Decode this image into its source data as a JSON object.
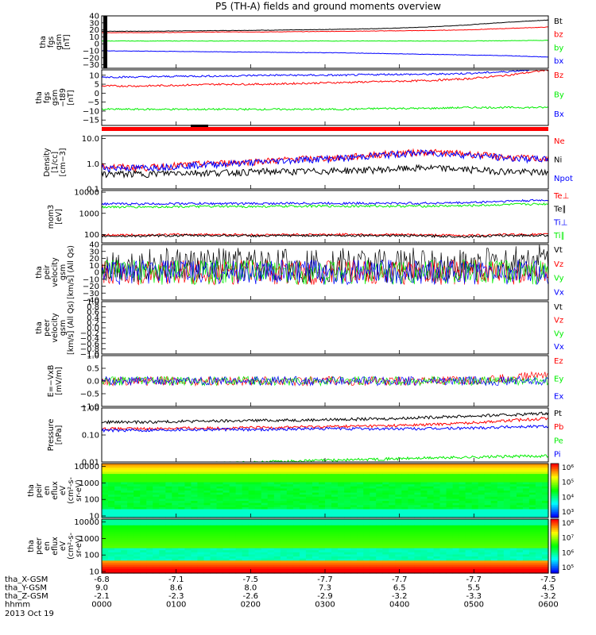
{
  "title": "P5 (TH-A) fields and ground moments overview",
  "footer": {
    "rows": [
      {
        "label": "tha_X-GSM",
        "values": [
          "-6.8",
          "-7.1",
          "-7.5",
          "-7.7",
          "-7.7",
          "-7.7",
          "-7.5"
        ]
      },
      {
        "label": "tha_Y-GSM",
        "values": [
          "9.0",
          "8.6",
          "8.0",
          "7.3",
          "6.5",
          "5.5",
          "4.5"
        ]
      },
      {
        "label": "tha_Z-GSM",
        "values": [
          "-2.1",
          "-2.3",
          "-2.6",
          "-2.9",
          "-3.2",
          "-3.3",
          "-3.2"
        ]
      },
      {
        "label": "hhmm",
        "values": [
          "0000",
          "0100",
          "0200",
          "0300",
          "0400",
          "0500",
          "0600"
        ]
      }
    ],
    "date": "2013 Oct 19"
  },
  "colors": {
    "black": "#000000",
    "red": "#ff0000",
    "green": "#00ee00",
    "blue": "#0000ff"
  },
  "chart_data": [
    {
      "type": "line",
      "ylabel": [
        "tha",
        "fgs",
        "gsm",
        "[nT]"
      ],
      "yticks": [
        "40",
        "30",
        "20",
        "10",
        "0",
        "−10",
        "−20",
        "−30"
      ],
      "series": [
        {
          "name": "Bt",
          "color": "black",
          "values": [
            18,
            18,
            18.5,
            19,
            19.5,
            20,
            21,
            22,
            24,
            27,
            31,
            34
          ]
        },
        {
          "name": "bz",
          "color": "red",
          "values": [
            16,
            16,
            16.5,
            17,
            17,
            17.5,
            18,
            18.5,
            19,
            20,
            22,
            24
          ]
        },
        {
          "name": "by",
          "color": "green",
          "values": [
            4,
            4,
            4,
            4,
            4,
            4,
            4,
            4,
            4,
            4,
            4.5,
            5
          ]
        },
        {
          "name": "bx",
          "color": "blue",
          "values": [
            -10,
            -10.5,
            -11,
            -11.5,
            -12,
            -12.5,
            -13,
            -14,
            -15,
            -16,
            -17,
            -19
          ]
        }
      ]
    },
    {
      "type": "line",
      "ylabel": [
        "tha",
        "fgs",
        "gsm",
        "−t89",
        "[nT]"
      ],
      "yticks": [
        "10",
        "5",
        "0",
        "−5",
        "−10",
        "−15"
      ],
      "series": [
        {
          "name": "Bz",
          "color": "red",
          "values": [
            4,
            4,
            4.5,
            5,
            5,
            5.5,
            6,
            6.5,
            7,
            8,
            10,
            13
          ]
        },
        {
          "name": "By",
          "color": "green",
          "values": [
            -9,
            -9,
            -9,
            -9,
            -9,
            -9,
            -9,
            -8.5,
            -8.5,
            -8,
            -8,
            -8
          ]
        },
        {
          "name": "Bx",
          "color": "blue",
          "values": [
            9,
            9,
            9.5,
            9.5,
            10,
            10,
            10,
            10.5,
            10.5,
            11,
            12,
            14
          ]
        }
      ]
    },
    {
      "type": "line",
      "ylabel": [
        "Density",
        "[1/cc]",
        "[cm−3]"
      ],
      "yticks": [
        "10.0",
        "1.0",
        "0.1"
      ],
      "series": [
        {
          "name": "Ne",
          "color": "red",
          "values": [
            0.8,
            0.7,
            0.9,
            1.1,
            1.3,
            1.6,
            1.8,
            2.5,
            3.0,
            2.5,
            1.8,
            1.6
          ]
        },
        {
          "name": "Ni",
          "color": "black",
          "values": [
            0.4,
            0.4,
            0.45,
            0.45,
            0.5,
            0.5,
            0.55,
            0.6,
            0.7,
            0.6,
            0.5,
            0.45
          ]
        },
        {
          "name": "Npot",
          "color": "blue",
          "values": [
            0.7,
            0.7,
            0.85,
            1.0,
            1.2,
            1.5,
            1.7,
            2.3,
            2.8,
            2.3,
            1.7,
            1.5
          ]
        }
      ]
    },
    {
      "type": "line",
      "ylabel": [
        "mom3",
        "[eV]"
      ],
      "yticks": [
        "10000",
        "1000",
        "100"
      ],
      "series": [
        {
          "name": "Te⊥",
          "color": "red",
          "values": [
            95,
            95,
            100,
            100,
            95,
            100,
            100,
            100,
            95,
            90,
            100,
            100
          ]
        },
        {
          "name": "Te∥",
          "color": "black",
          "values": [
            85,
            85,
            90,
            90,
            85,
            90,
            90,
            90,
            85,
            80,
            90,
            90
          ]
        },
        {
          "name": "Ti⊥",
          "color": "blue",
          "values": [
            2800,
            2800,
            2900,
            2900,
            2900,
            3000,
            3000,
            3000,
            3000,
            3200,
            3800,
            4200
          ]
        },
        {
          "name": "Ti∥",
          "color": "green",
          "values": [
            2000,
            2000,
            2100,
            2100,
            2100,
            2200,
            2200,
            2200,
            2200,
            2300,
            2600,
            2800
          ]
        }
      ]
    },
    {
      "type": "line",
      "ylabel": [
        "tha",
        "peir",
        "velocity",
        "gsm",
        "[km/s] (All Qs)"
      ],
      "yticks": [
        "40",
        "30",
        "20",
        "10",
        "0",
        "−10",
        "−20",
        "−30",
        "−40"
      ],
      "series": [
        {
          "name": "Vt",
          "color": "black",
          "values": [
            10,
            10,
            10,
            10,
            10,
            10,
            10,
            10,
            10,
            10,
            12,
            18
          ]
        },
        {
          "name": "Vz",
          "color": "red",
          "values": [
            0,
            0,
            0,
            0,
            0,
            0,
            0,
            0,
            0,
            0,
            0,
            0
          ]
        },
        {
          "name": "Vy",
          "color": "green",
          "values": [
            0,
            0,
            0,
            0,
            0,
            0,
            0,
            0,
            0,
            0,
            0,
            0
          ]
        },
        {
          "name": "Vx",
          "color": "blue",
          "values": [
            0,
            0,
            0,
            0,
            0,
            0,
            0,
            0,
            0,
            0,
            0,
            0
          ]
        }
      ]
    },
    {
      "type": "line",
      "ylabel": [
        "tha",
        "peer",
        "velocity",
        "gsm",
        "[km/s] (All Qs)"
      ],
      "yticks": [
        "1.0",
        "0.8",
        "0.6",
        "0.4",
        "0.2",
        "0.0",
        "−0.2",
        "−0.4",
        "−0.6",
        "−0.8",
        "−1.0"
      ],
      "series": [
        {
          "name": "Vt",
          "color": "black",
          "values": []
        },
        {
          "name": "Vz",
          "color": "red",
          "values": []
        },
        {
          "name": "Vy",
          "color": "green",
          "values": []
        },
        {
          "name": "Vx",
          "color": "blue",
          "values": []
        }
      ]
    },
    {
      "type": "line",
      "ylabel": [
        "E=−VxB",
        "[mV/m]"
      ],
      "yticks": [
        "1.0",
        "0.5",
        "0.0",
        "−0.5",
        "−1.0"
      ],
      "series": [
        {
          "name": "Ez",
          "color": "red",
          "values": [
            0,
            0,
            0,
            0,
            0,
            0,
            0,
            0,
            0,
            0,
            0.1,
            0.3
          ]
        },
        {
          "name": "Ey",
          "color": "green",
          "values": [
            0,
            0,
            0,
            0,
            0,
            0,
            0,
            0,
            0,
            0,
            0,
            0
          ]
        },
        {
          "name": "Ex",
          "color": "blue",
          "values": [
            0,
            0,
            0,
            0,
            0,
            0,
            0,
            0,
            0,
            0,
            0,
            0
          ]
        }
      ]
    },
    {
      "type": "line",
      "ylabel": [
        "Pressure",
        "[nPa]"
      ],
      "yticks": [
        "1.00",
        "0.10",
        "0.01"
      ],
      "series": [
        {
          "name": "Pt",
          "color": "black",
          "values": [
            0.3,
            0.3,
            0.32,
            0.33,
            0.35,
            0.36,
            0.38,
            0.4,
            0.45,
            0.5,
            0.55,
            0.65
          ]
        },
        {
          "name": "Pb",
          "color": "red",
          "values": [
            0.17,
            0.17,
            0.18,
            0.18,
            0.19,
            0.2,
            0.21,
            0.22,
            0.24,
            0.28,
            0.34,
            0.42
          ]
        },
        {
          "name": "Pe",
          "color": "green",
          "values": [
            0.008,
            0.008,
            0.009,
            0.009,
            0.01,
            0.011,
            0.012,
            0.013,
            0.014,
            0.015,
            0.016,
            0.017
          ]
        },
        {
          "name": "Pi",
          "color": "blue",
          "values": [
            0.15,
            0.15,
            0.16,
            0.16,
            0.16,
            0.17,
            0.17,
            0.17,
            0.17,
            0.18,
            0.2,
            0.21
          ]
        }
      ]
    },
    {
      "type": "heatmap",
      "ylabel": [
        "tha",
        "peir",
        "en",
        "eflux",
        "eV",
        "(cm²-s-",
        "sr-eV)"
      ],
      "yticks": [
        "10000",
        "1000",
        "100",
        "10"
      ],
      "colorbar": [
        "10⁶",
        "10⁵",
        "10⁴",
        "10³"
      ]
    },
    {
      "type": "heatmap",
      "ylabel": [
        "tha",
        "peer",
        "en",
        "eflux",
        "eV",
        "(cm²-s-",
        "sr-eV)"
      ],
      "yticks": [
        "10000",
        "1000",
        "100",
        "10"
      ],
      "colorbar": [
        "10⁸",
        "10⁷",
        "10⁶",
        "10⁵"
      ]
    }
  ]
}
